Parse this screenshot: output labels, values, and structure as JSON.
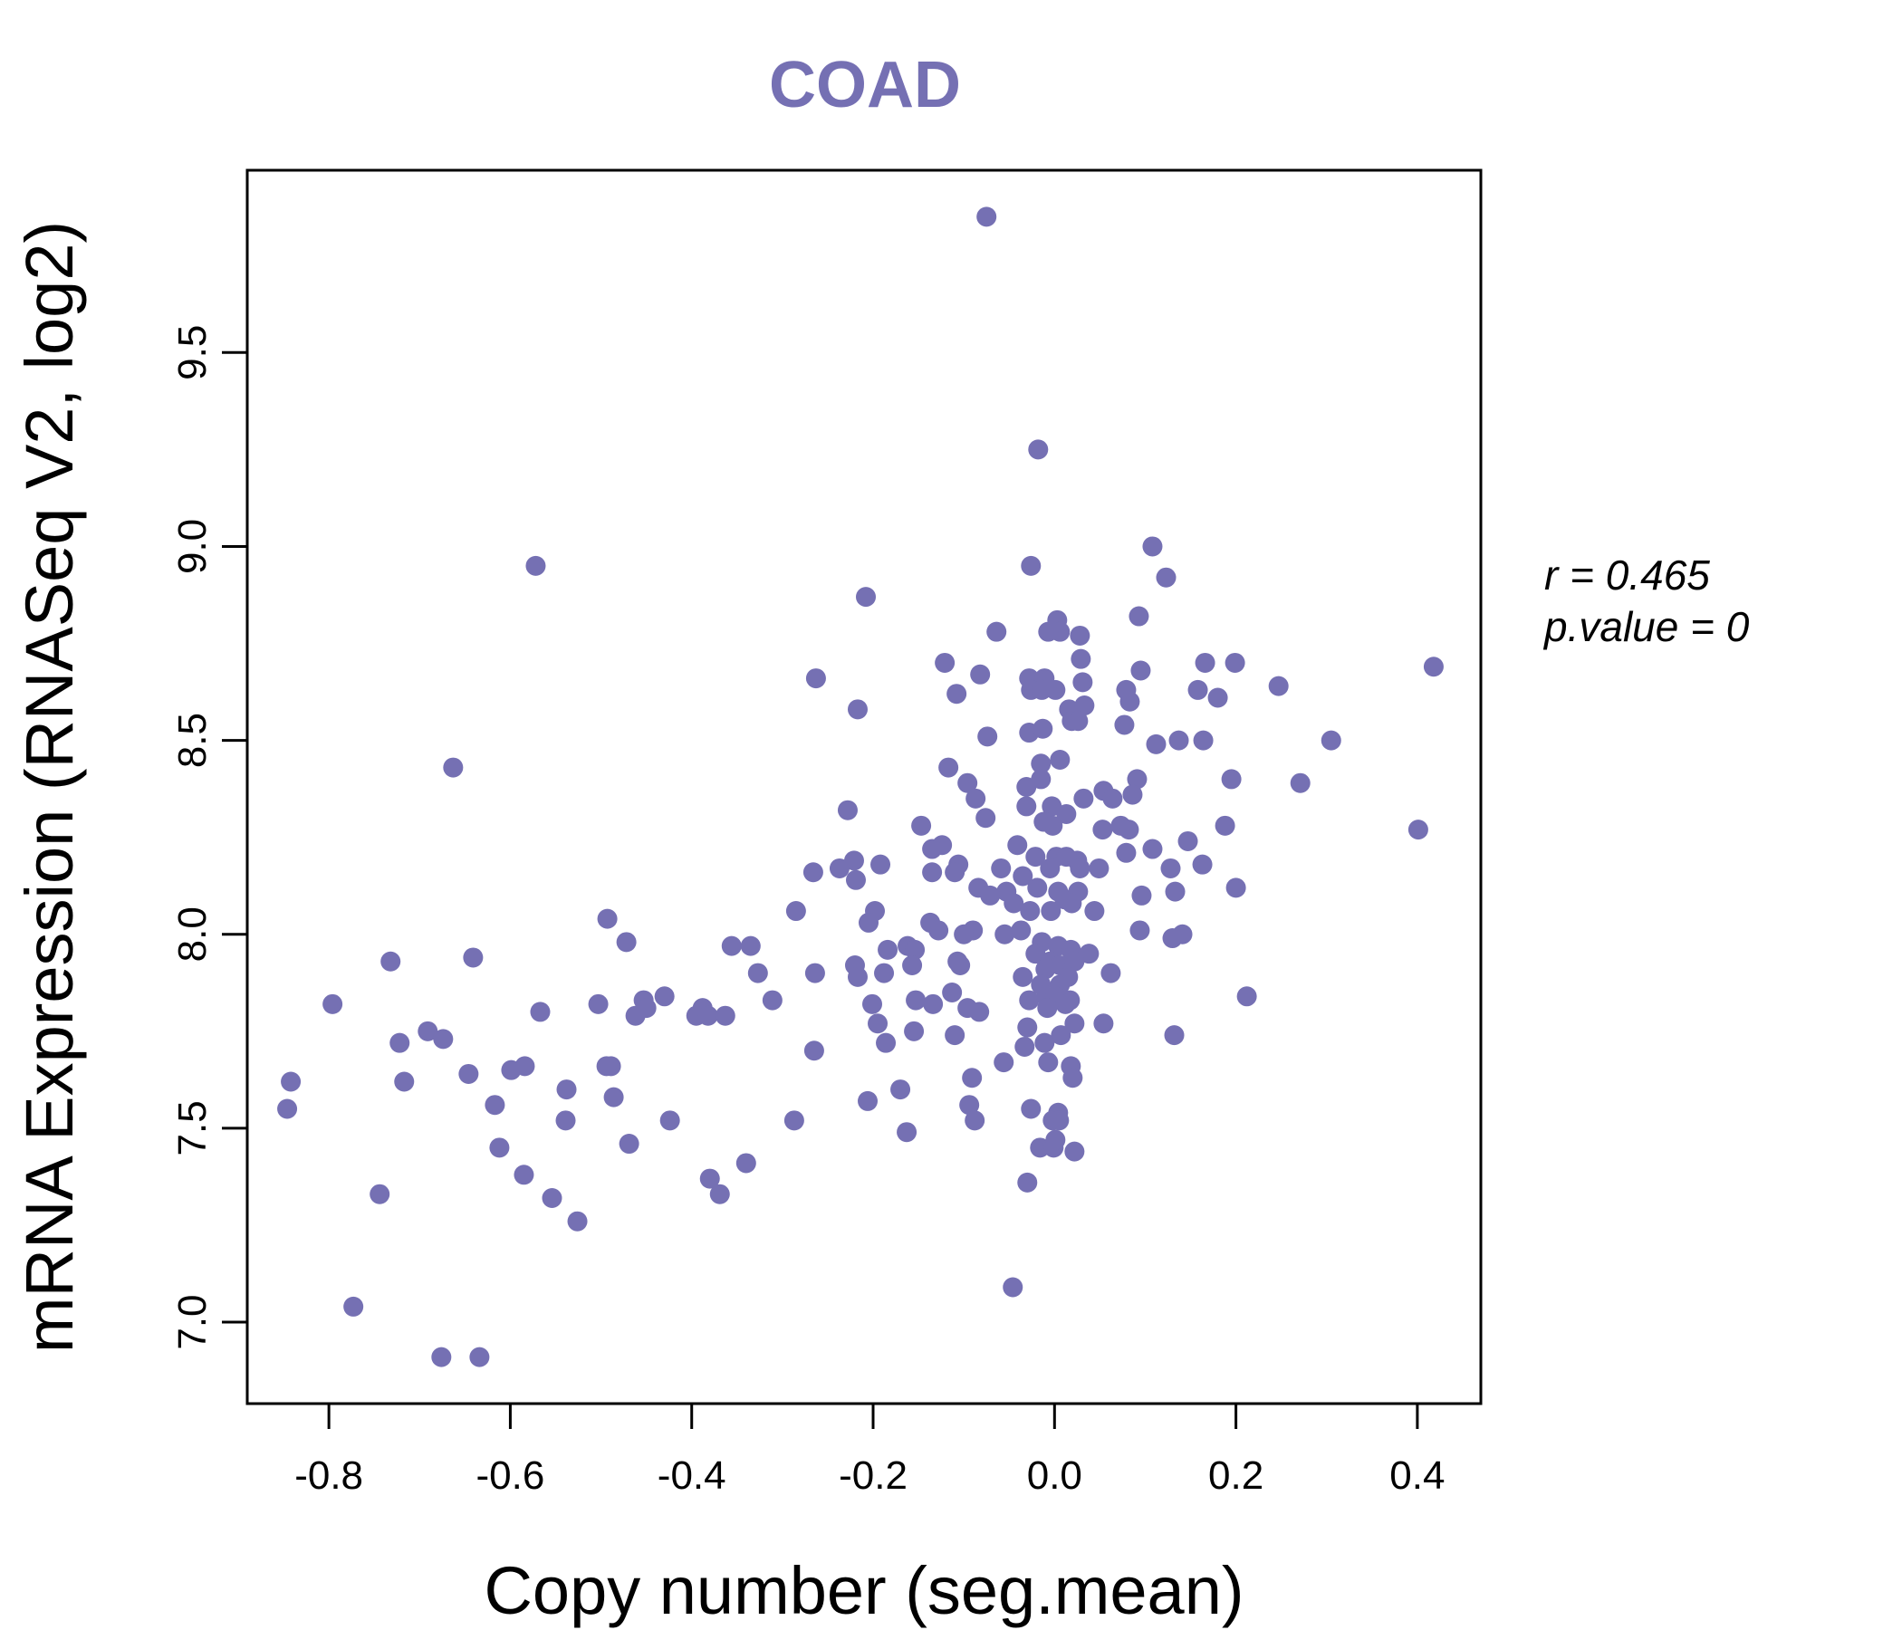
{
  "chart_data": {
    "type": "scatter",
    "title": "COAD",
    "xlabel": "Copy number (seg.mean)",
    "ylabel": "mRNA Expression (RNASeq V2, log2)",
    "xlim": [
      -0.89,
      0.47
    ],
    "ylim": [
      6.79,
      9.97
    ],
    "x_ticks": [
      -0.8,
      -0.6,
      -0.4,
      -0.2,
      0.0,
      0.2,
      0.4
    ],
    "x_tick_labels": [
      "-0.8",
      "-0.6",
      "-0.4",
      "-0.2",
      "0.0",
      "0.2",
      "0.4"
    ],
    "y_ticks": [
      7.0,
      7.5,
      8.0,
      8.5,
      9.0,
      9.5
    ],
    "y_tick_labels": [
      "7.0",
      "7.5",
      "8.0",
      "8.5",
      "9.0",
      "9.5"
    ],
    "grid": false,
    "annotations": {
      "r_label": "r = 0.465",
      "p_label": "p.value = 0"
    },
    "colors": {
      "points": "#7570b3",
      "title": "#7570b3",
      "axis": "#000000"
    },
    "points": [
      [
        -0.075,
        9.85
      ],
      [
        -0.018,
        9.25
      ],
      [
        -0.572,
        8.95
      ],
      [
        -0.026,
        8.95
      ],
      [
        0.108,
        9.0
      ],
      [
        0.123,
        8.92
      ],
      [
        -0.208,
        8.87
      ],
      [
        0.093,
        8.82
      ],
      [
        0.003,
        8.81
      ],
      [
        0.006,
        8.78
      ],
      [
        -0.007,
        8.78
      ],
      [
        -0.064,
        8.78
      ],
      [
        0.028,
        8.77
      ],
      [
        -0.263,
        8.66
      ],
      [
        -0.121,
        8.7
      ],
      [
        -0.082,
        8.67
      ],
      [
        -0.028,
        8.66
      ],
      [
        -0.011,
        8.66
      ],
      [
        0.029,
        8.71
      ],
      [
        0.095,
        8.68
      ],
      [
        0.166,
        8.7
      ],
      [
        0.199,
        8.7
      ],
      [
        0.247,
        8.64
      ],
      [
        0.418,
        8.69
      ],
      [
        -0.026,
        8.63
      ],
      [
        -0.014,
        8.63
      ],
      [
        0.001,
        8.63
      ],
      [
        0.031,
        8.65
      ],
      [
        -0.108,
        8.62
      ],
      [
        0.079,
        8.63
      ],
      [
        0.158,
        8.63
      ],
      [
        0.18,
        8.61
      ],
      [
        -0.217,
        8.58
      ],
      [
        0.016,
        8.58
      ],
      [
        0.033,
        8.59
      ],
      [
        0.083,
        8.6
      ],
      [
        0.019,
        8.55
      ],
      [
        0.026,
        8.55
      ],
      [
        0.077,
        8.54
      ],
      [
        -0.074,
        8.51
      ],
      [
        -0.028,
        8.52
      ],
      [
        -0.013,
        8.53
      ],
      [
        0.112,
        8.49
      ],
      [
        0.137,
        8.5
      ],
      [
        0.164,
        8.5
      ],
      [
        0.305,
        8.5
      ],
      [
        0.006,
        8.45
      ],
      [
        -0.015,
        8.44
      ],
      [
        -0.663,
        8.43
      ],
      [
        -0.117,
        8.43
      ],
      [
        -0.096,
        8.39
      ],
      [
        -0.031,
        8.38
      ],
      [
        -0.015,
        8.4
      ],
      [
        0.091,
        8.4
      ],
      [
        0.195,
        8.4
      ],
      [
        0.271,
        8.39
      ],
      [
        -0.087,
        8.35
      ],
      [
        0.032,
        8.35
      ],
      [
        0.054,
        8.37
      ],
      [
        0.064,
        8.35
      ],
      [
        0.086,
        8.36
      ],
      [
        -0.228,
        8.32
      ],
      [
        -0.031,
        8.33
      ],
      [
        -0.003,
        8.33
      ],
      [
        0.013,
        8.31
      ],
      [
        -0.076,
        8.3
      ],
      [
        -0.147,
        8.28
      ],
      [
        -0.012,
        8.29
      ],
      [
        -0.002,
        8.28
      ],
      [
        0.053,
        8.27
      ],
      [
        0.073,
        8.28
      ],
      [
        0.082,
        8.27
      ],
      [
        0.188,
        8.28
      ],
      [
        0.401,
        8.27
      ],
      [
        -0.124,
        8.23
      ],
      [
        -0.041,
        8.23
      ],
      [
        -0.135,
        8.22
      ],
      [
        0.108,
        8.22
      ],
      [
        0.147,
        8.24
      ],
      [
        0.079,
        8.21
      ],
      [
        -0.221,
        8.19
      ],
      [
        -0.192,
        8.18
      ],
      [
        -0.106,
        8.18
      ],
      [
        -0.021,
        8.2
      ],
      [
        0.002,
        8.2
      ],
      [
        0.013,
        8.2
      ],
      [
        0.025,
        8.19
      ],
      [
        -0.237,
        8.17
      ],
      [
        -0.266,
        8.16
      ],
      [
        -0.135,
        8.16
      ],
      [
        -0.11,
        8.16
      ],
      [
        -0.059,
        8.17
      ],
      [
        -0.005,
        8.17
      ],
      [
        0.028,
        8.17
      ],
      [
        0.049,
        8.17
      ],
      [
        0.128,
        8.17
      ],
      [
        0.163,
        8.18
      ],
      [
        -0.219,
        8.14
      ],
      [
        -0.035,
        8.15
      ],
      [
        -0.084,
        8.12
      ],
      [
        -0.053,
        8.11
      ],
      [
        -0.019,
        8.12
      ],
      [
        0.004,
        8.11
      ],
      [
        0.026,
        8.11
      ],
      [
        0.096,
        8.1
      ],
      [
        0.133,
        8.11
      ],
      [
        0.2,
        8.12
      ],
      [
        -0.071,
        8.1
      ],
      [
        0.011,
        8.09
      ],
      [
        0.019,
        8.08
      ],
      [
        -0.045,
        8.08
      ],
      [
        -0.027,
        8.06
      ],
      [
        -0.004,
        8.06
      ],
      [
        0.044,
        8.06
      ],
      [
        -0.285,
        8.06
      ],
      [
        -0.198,
        8.06
      ],
      [
        -0.493,
        8.04
      ],
      [
        -0.205,
        8.03
      ],
      [
        -0.137,
        8.03
      ],
      [
        -0.128,
        8.01
      ],
      [
        -0.09,
        8.01
      ],
      [
        -0.055,
        8.0
      ],
      [
        -0.037,
        8.01
      ],
      [
        -0.1,
        8.0
      ],
      [
        0.094,
        8.01
      ],
      [
        0.141,
        8.0
      ],
      [
        0.13,
        7.99
      ],
      [
        -0.472,
        7.98
      ],
      [
        -0.356,
        7.97
      ],
      [
        -0.335,
        7.97
      ],
      [
        -0.162,
        7.97
      ],
      [
        -0.154,
        7.96
      ],
      [
        -0.184,
        7.96
      ],
      [
        -0.014,
        7.98
      ],
      [
        0.004,
        7.97
      ],
      [
        0.018,
        7.96
      ],
      [
        0.038,
        7.95
      ],
      [
        -0.021,
        7.95
      ],
      [
        -0.732,
        7.93
      ],
      [
        -0.641,
        7.94
      ],
      [
        -0.22,
        7.92
      ],
      [
        -0.157,
        7.92
      ],
      [
        -0.107,
        7.93
      ],
      [
        -0.104,
        7.92
      ],
      [
        -0.005,
        7.93
      ],
      [
        0.006,
        7.92
      ],
      [
        0.022,
        7.93
      ],
      [
        -0.01,
        7.91
      ],
      [
        -0.327,
        7.9
      ],
      [
        -0.264,
        7.9
      ],
      [
        -0.217,
        7.89
      ],
      [
        -0.188,
        7.9
      ],
      [
        -0.035,
        7.89
      ],
      [
        0.015,
        7.89
      ],
      [
        0.062,
        7.9
      ],
      [
        -0.015,
        7.87
      ],
      [
        0.006,
        7.87
      ],
      [
        -0.453,
        7.83
      ],
      [
        -0.43,
        7.84
      ],
      [
        -0.388,
        7.81
      ],
      [
        -0.311,
        7.83
      ],
      [
        -0.153,
        7.83
      ],
      [
        -0.134,
        7.82
      ],
      [
        -0.113,
        7.85
      ],
      [
        -0.028,
        7.83
      ],
      [
        -0.009,
        7.84
      ],
      [
        0.001,
        7.84
      ],
      [
        0.017,
        7.83
      ],
      [
        0.212,
        7.84
      ],
      [
        -0.796,
        7.82
      ],
      [
        -0.503,
        7.82
      ],
      [
        -0.462,
        7.79
      ],
      [
        -0.45,
        7.81
      ],
      [
        -0.395,
        7.79
      ],
      [
        -0.382,
        7.79
      ],
      [
        -0.363,
        7.79
      ],
      [
        -0.567,
        7.8
      ],
      [
        -0.201,
        7.82
      ],
      [
        -0.096,
        7.81
      ],
      [
        -0.083,
        7.8
      ],
      [
        -0.008,
        7.81
      ],
      [
        0.012,
        7.82
      ],
      [
        -0.195,
        7.77
      ],
      [
        0.022,
        7.77
      ],
      [
        0.054,
        7.77
      ],
      [
        -0.03,
        7.76
      ],
      [
        -0.155,
        7.75
      ],
      [
        -0.691,
        7.75
      ],
      [
        -0.674,
        7.73
      ],
      [
        -0.722,
        7.72
      ],
      [
        -0.11,
        7.74
      ],
      [
        0.007,
        7.74
      ],
      [
        0.132,
        7.74
      ],
      [
        -0.186,
        7.72
      ],
      [
        -0.033,
        7.71
      ],
      [
        -0.011,
        7.72
      ],
      [
        -0.265,
        7.7
      ],
      [
        -0.584,
        7.66
      ],
      [
        -0.599,
        7.65
      ],
      [
        -0.489,
        7.66
      ],
      [
        -0.494,
        7.66
      ],
      [
        -0.056,
        7.67
      ],
      [
        -0.007,
        7.67
      ],
      [
        0.018,
        7.66
      ],
      [
        -0.646,
        7.64
      ],
      [
        -0.717,
        7.62
      ],
      [
        -0.091,
        7.63
      ],
      [
        0.02,
        7.63
      ],
      [
        -0.538,
        7.6
      ],
      [
        -0.17,
        7.6
      ],
      [
        -0.486,
        7.58
      ],
      [
        -0.206,
        7.57
      ],
      [
        -0.094,
        7.56
      ],
      [
        -0.617,
        7.56
      ],
      [
        -0.842,
        7.62
      ],
      [
        -0.846,
        7.55
      ],
      [
        -0.026,
        7.55
      ],
      [
        0.004,
        7.54
      ],
      [
        -0.002,
        7.52
      ],
      [
        0.005,
        7.52
      ],
      [
        -0.539,
        7.52
      ],
      [
        -0.424,
        7.52
      ],
      [
        -0.287,
        7.52
      ],
      [
        -0.088,
        7.52
      ],
      [
        -0.163,
        7.49
      ],
      [
        -0.469,
        7.46
      ],
      [
        -0.612,
        7.45
      ],
      [
        -0.016,
        7.45
      ],
      [
        -0.001,
        7.45
      ],
      [
        0.001,
        7.47
      ],
      [
        0.022,
        7.44
      ],
      [
        -0.34,
        7.41
      ],
      [
        -0.585,
        7.38
      ],
      [
        -0.38,
        7.37
      ],
      [
        -0.03,
        7.36
      ],
      [
        -0.744,
        7.33
      ],
      [
        -0.369,
        7.33
      ],
      [
        -0.554,
        7.32
      ],
      [
        -0.526,
        7.26
      ],
      [
        -0.773,
        7.04
      ],
      [
        -0.046,
        7.09
      ],
      [
        -0.676,
        6.91
      ],
      [
        -0.634,
        6.91
      ]
    ]
  }
}
